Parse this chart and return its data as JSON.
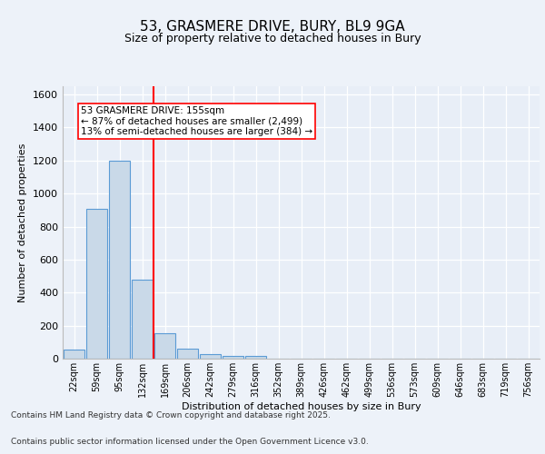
{
  "title_line1": "53, GRASMERE DRIVE, BURY, BL9 9GA",
  "title_line2": "Size of property relative to detached houses in Bury",
  "xlabel": "Distribution of detached houses by size in Bury",
  "ylabel": "Number of detached properties",
  "bin_labels": [
    "22sqm",
    "59sqm",
    "95sqm",
    "132sqm",
    "169sqm",
    "206sqm",
    "242sqm",
    "279sqm",
    "316sqm",
    "352sqm",
    "389sqm",
    "426sqm",
    "462sqm",
    "499sqm",
    "536sqm",
    "573sqm",
    "609sqm",
    "646sqm",
    "683sqm",
    "719sqm",
    "756sqm"
  ],
  "bar_heights": [
    55,
    910,
    1200,
    480,
    155,
    60,
    28,
    15,
    15,
    0,
    0,
    0,
    0,
    0,
    0,
    0,
    0,
    0,
    0,
    0,
    0
  ],
  "bar_color": "#c9d9e8",
  "bar_edge_color": "#5b9bd5",
  "annotation_line1": "53 GRASMERE DRIVE: 155sqm",
  "annotation_line2": "← 87% of detached houses are smaller (2,499)",
  "annotation_line3": "13% of semi-detached houses are larger (384) →",
  "ylim": [
    0,
    1650
  ],
  "yticks": [
    0,
    200,
    400,
    600,
    800,
    1000,
    1200,
    1400,
    1600
  ],
  "footer_line1": "Contains HM Land Registry data © Crown copyright and database right 2025.",
  "footer_line2": "Contains public sector information licensed under the Open Government Licence v3.0.",
  "bg_color": "#edf2f9",
  "plot_bg_color": "#e8eef7"
}
